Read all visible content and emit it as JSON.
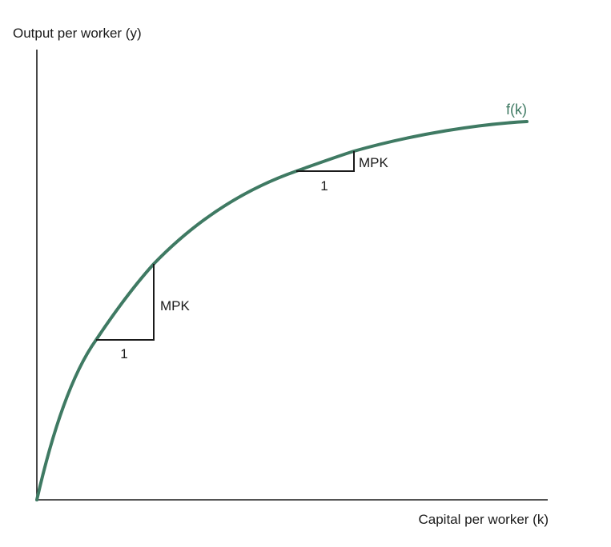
{
  "axes": {
    "y_label": "Output per worker (y)",
    "x_label": "Capital per worker (k)"
  },
  "curve": {
    "label": "f(k)",
    "color": "#3f7a63"
  },
  "slopes": [
    {
      "rise_label": "MPK",
      "run_label": "1"
    },
    {
      "rise_label": "MPK",
      "run_label": "1"
    }
  ]
}
